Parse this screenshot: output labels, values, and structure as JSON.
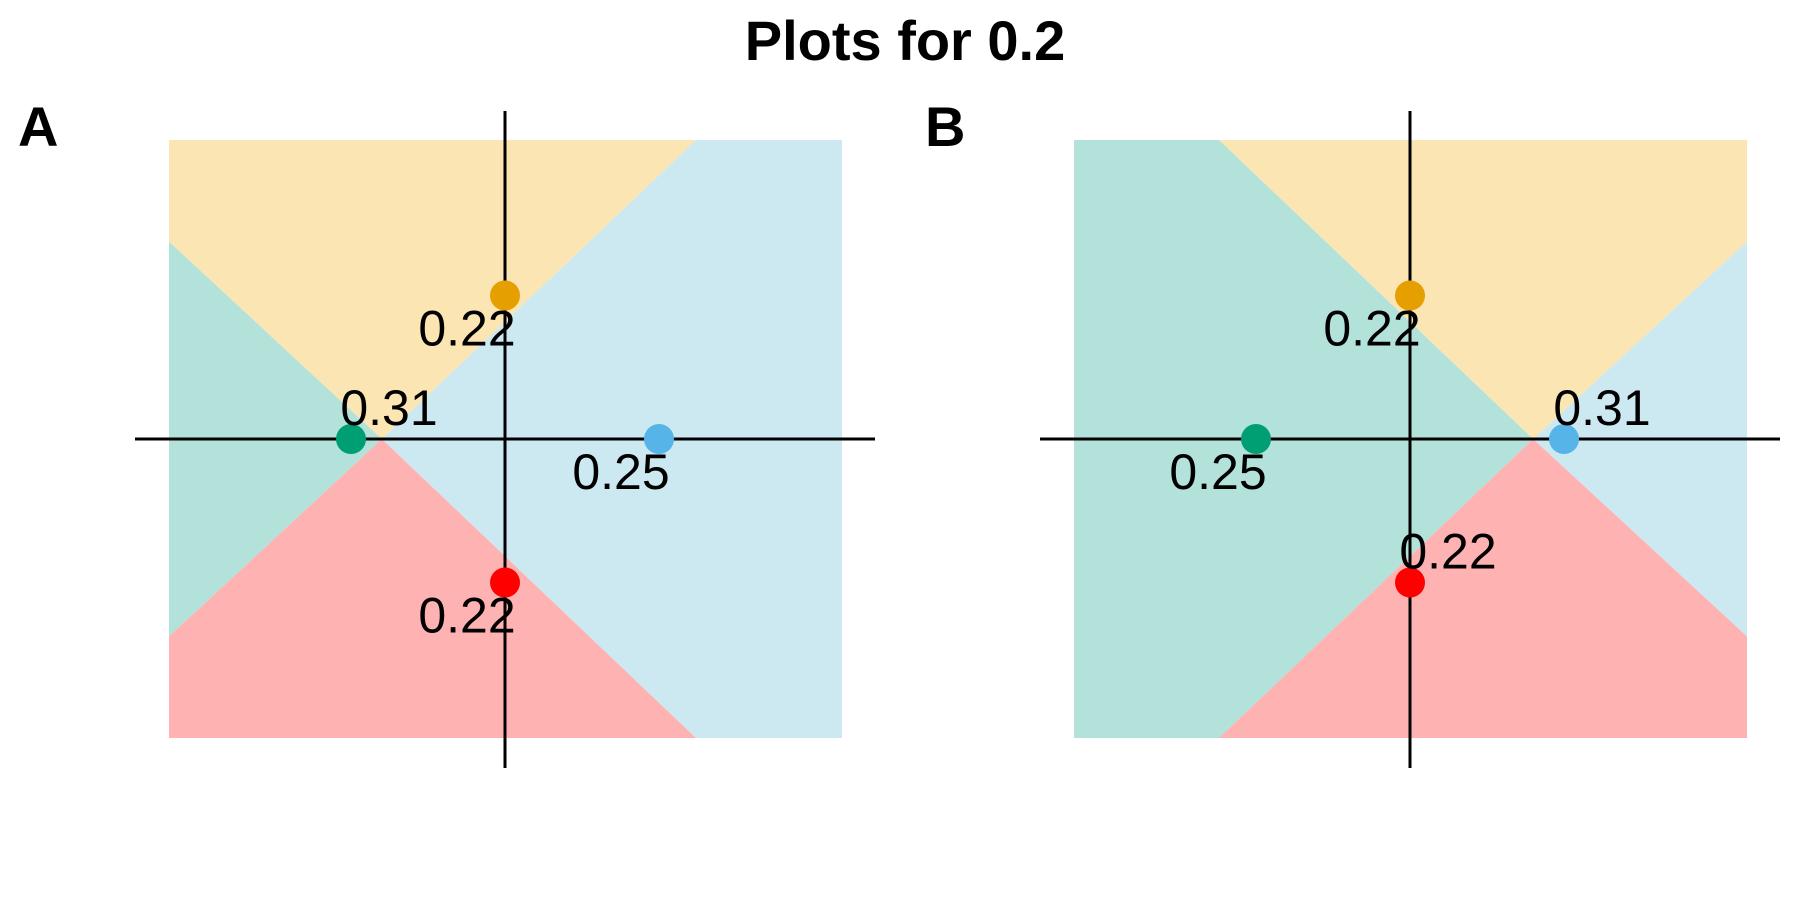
{
  "title": "Plots for 0.2",
  "colors": {
    "orange": "#E69F00",
    "teal": "#009E73",
    "blue": "#56B4E9",
    "red": "#FF0000",
    "orange_region": "#FAE5B3",
    "teal_region": "#B3E2DB",
    "blue_region": "#CCE9F2",
    "red_region": "#FFB2B2"
  },
  "chart_data": [
    {
      "type": "scatter",
      "panel": "A",
      "xlim": [
        -1.1,
        1.1
      ],
      "ylim": [
        -1.0,
        1.0
      ],
      "grid": false,
      "regions": [
        {
          "color": "blue_region",
          "polygon": [
            [
              -0.4,
              0
            ],
            [
              0.62,
              1.0
            ],
            [
              1.1,
              1.0
            ],
            [
              1.1,
              -1.0
            ],
            [
              0.62,
              -1.0
            ]
          ]
        },
        {
          "color": "orange_region",
          "polygon": [
            [
              -1.1,
              1.0
            ],
            [
              0.62,
              1.0
            ],
            [
              -0.4,
              0
            ],
            [
              -1.1,
              0.66
            ]
          ]
        },
        {
          "color": "red_region",
          "polygon": [
            [
              -1.1,
              -1.0
            ],
            [
              0.62,
              -1.0
            ],
            [
              -0.4,
              0
            ],
            [
              -1.1,
              -0.66
            ]
          ]
        },
        {
          "color": "teal_region",
          "polygon": [
            [
              -1.1,
              0.66
            ],
            [
              -0.4,
              0
            ],
            [
              -1.1,
              -0.66
            ]
          ]
        }
      ],
      "points": [
        {
          "x": 0,
          "y": 0.48,
          "color": "orange",
          "label": "0.22",
          "label_pos": "below-left"
        },
        {
          "x": -0.5,
          "y": 0,
          "color": "teal",
          "label": "0.31",
          "label_pos": "above-right"
        },
        {
          "x": 0.5,
          "y": 0,
          "color": "blue",
          "label": "0.25",
          "label_pos": "below-left"
        },
        {
          "x": 0,
          "y": -0.48,
          "color": "red",
          "label": "0.22",
          "label_pos": "below-left"
        }
      ]
    },
    {
      "type": "scatter",
      "panel": "B",
      "xlim": [
        -1.1,
        1.1
      ],
      "ylim": [
        -1.0,
        1.0
      ],
      "grid": false,
      "regions": [
        {
          "color": "teal_region",
          "polygon": [
            [
              -1.1,
              1.0
            ],
            [
              -0.62,
              1.0
            ],
            [
              0.4,
              0
            ],
            [
              -0.62,
              -1.0
            ],
            [
              -1.1,
              -1.0
            ]
          ]
        },
        {
          "color": "orange_region",
          "polygon": [
            [
              -0.62,
              1.0
            ],
            [
              1.1,
              1.0
            ],
            [
              1.1,
              0.66
            ],
            [
              0.4,
              0
            ]
          ]
        },
        {
          "color": "red_region",
          "polygon": [
            [
              -0.62,
              -1.0
            ],
            [
              1.1,
              -1.0
            ],
            [
              1.1,
              -0.66
            ],
            [
              0.4,
              0
            ]
          ]
        },
        {
          "color": "blue_region",
          "polygon": [
            [
              1.1,
              0.66
            ],
            [
              0.4,
              0
            ],
            [
              1.1,
              -0.66
            ]
          ]
        }
      ],
      "points": [
        {
          "x": 0,
          "y": 0.48,
          "color": "orange",
          "label": "0.22",
          "label_pos": "below-left"
        },
        {
          "x": -0.5,
          "y": 0,
          "color": "teal",
          "label": "0.25",
          "label_pos": "below-left"
        },
        {
          "x": 0.5,
          "y": 0,
          "color": "blue",
          "label": "0.31",
          "label_pos": "above-right"
        },
        {
          "x": 0,
          "y": -0.48,
          "color": "red",
          "label": "0.22",
          "label_pos": "above-right"
        }
      ]
    }
  ]
}
